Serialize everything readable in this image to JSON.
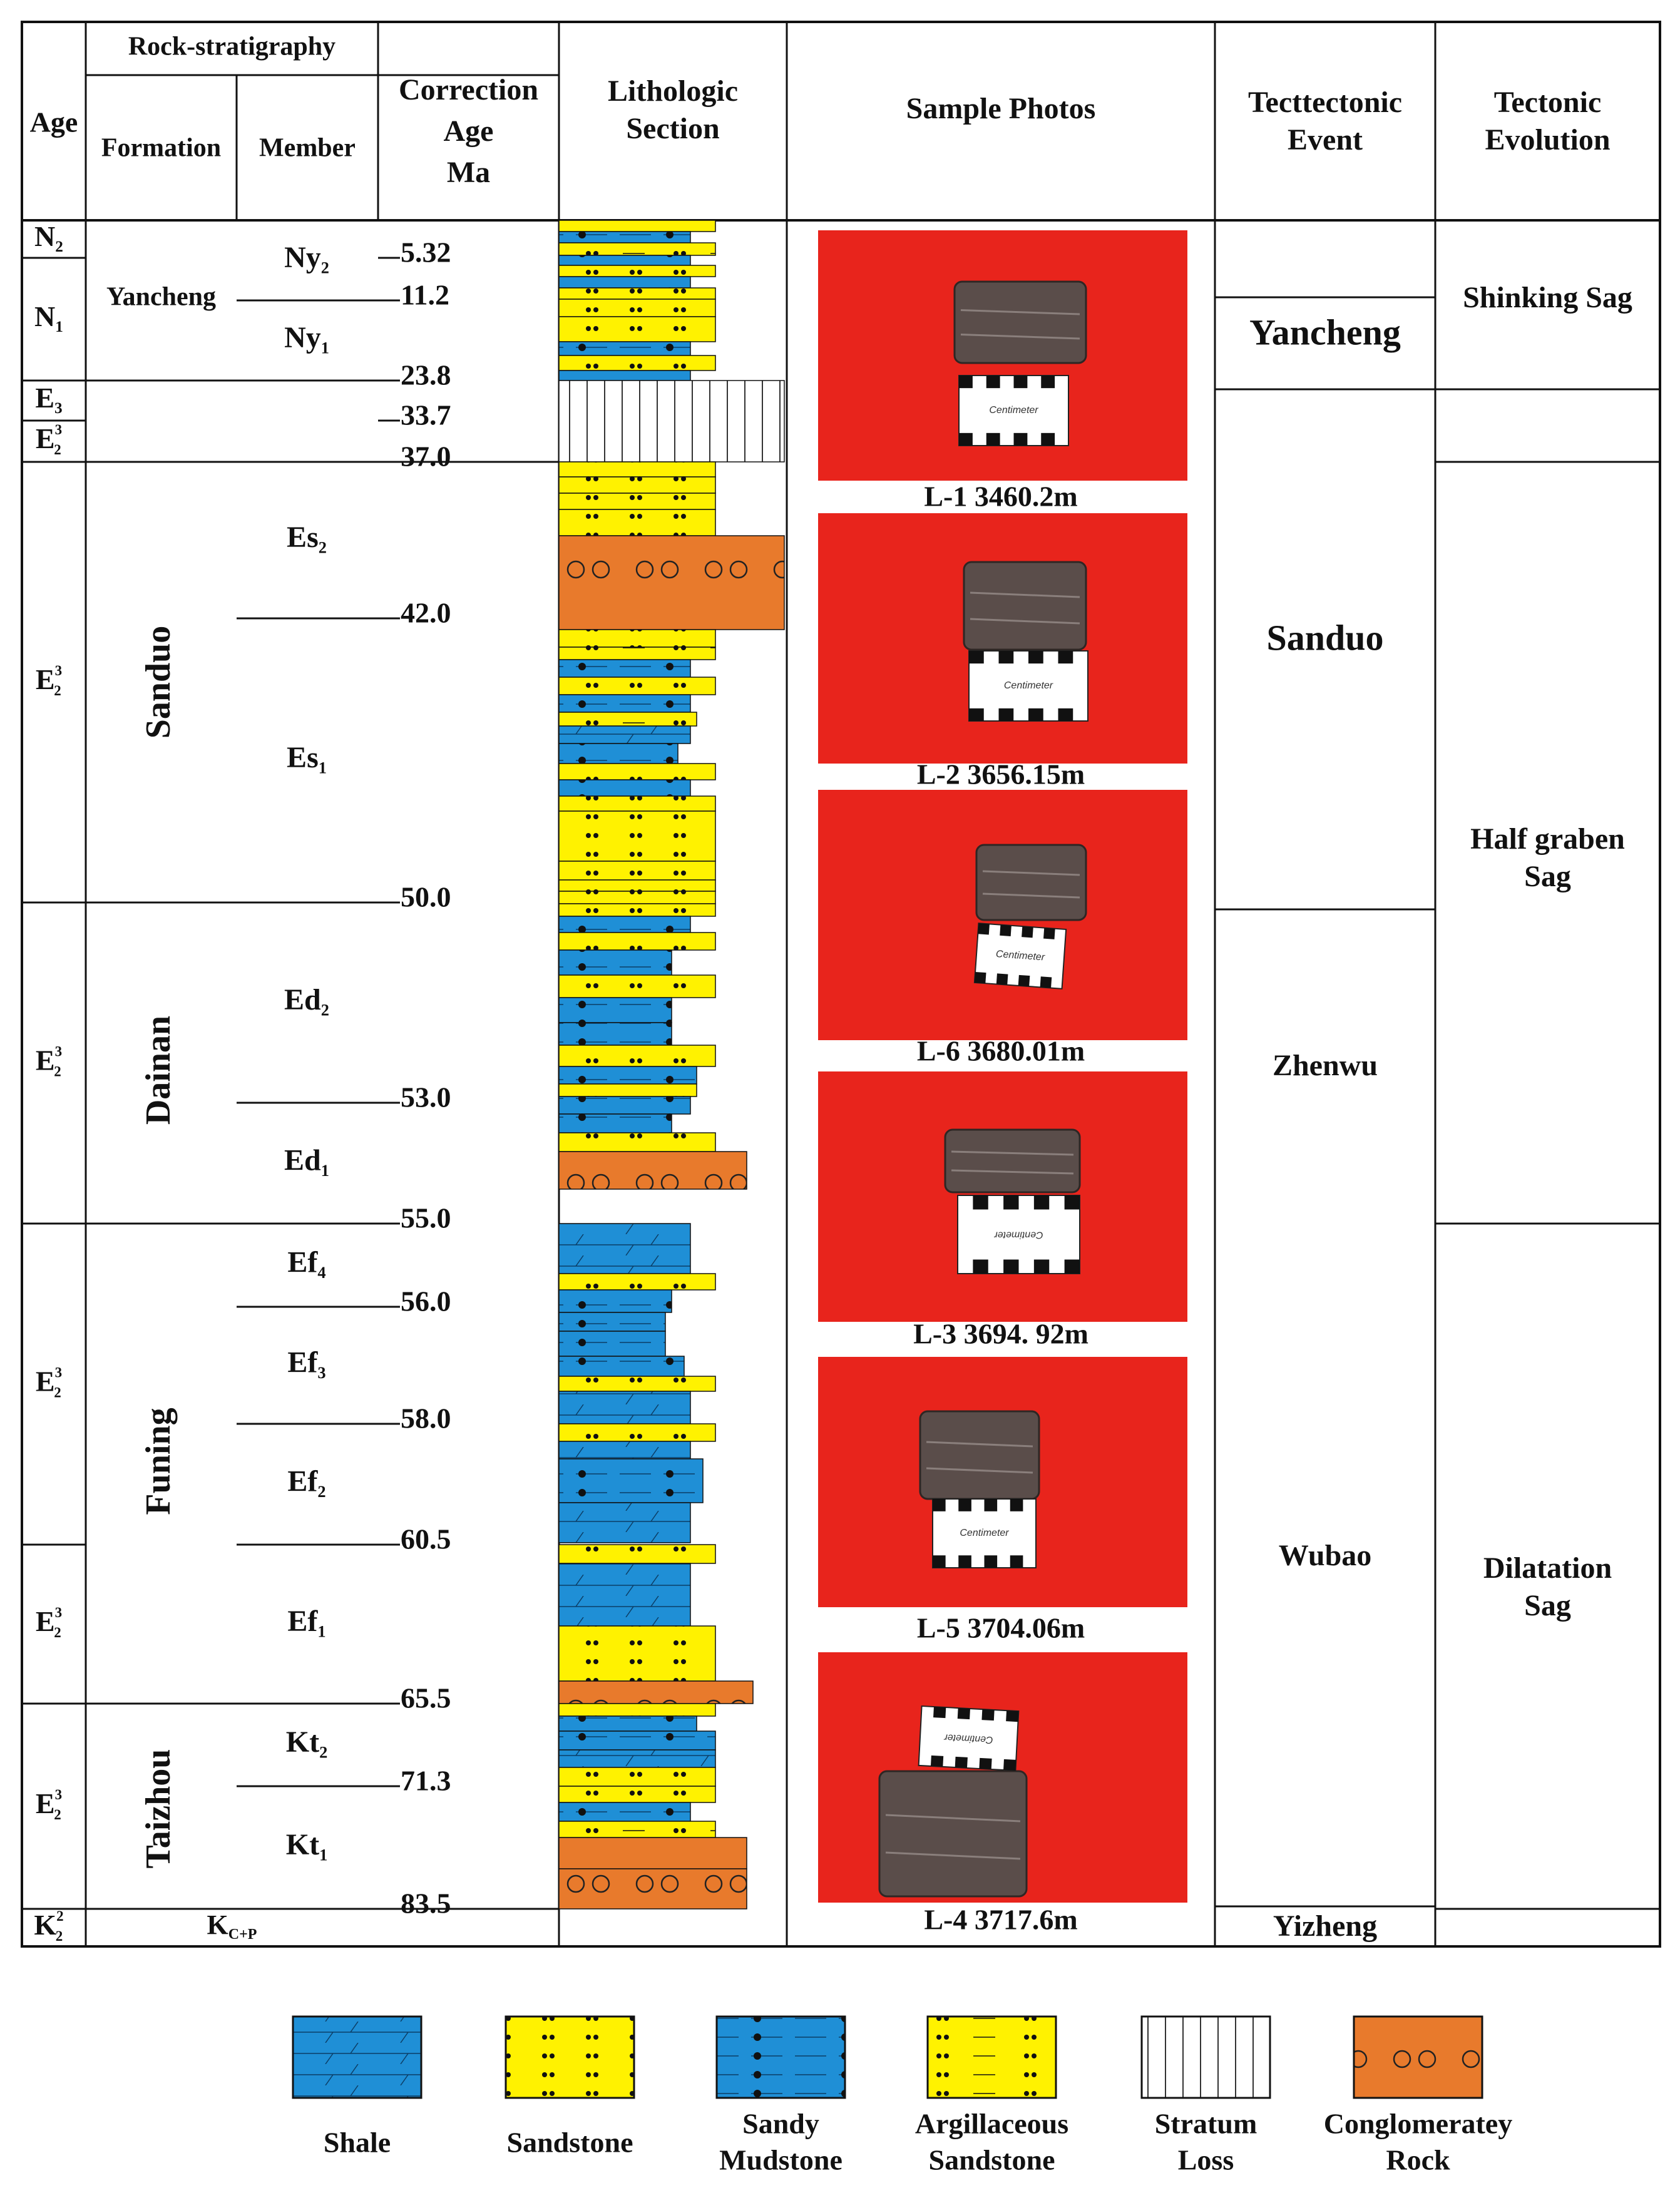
{
  "headers": {
    "age": "Age",
    "rock_strat": "Rock-stratigraphy",
    "formation": "Formation",
    "member": "Member",
    "correction_age": [
      "Correction",
      "Age",
      "Ma"
    ],
    "lithologic_section": [
      "Lithologic",
      "Section"
    ],
    "sample_photos": "Sample Photos",
    "tectonic_event": [
      "Tecttectonic",
      "Event"
    ],
    "tectonic_evolution": [
      "Tectonic",
      "Evolution"
    ]
  },
  "age_codes": [
    {
      "main": "N",
      "sub": "2"
    },
    {
      "main": "N",
      "sub": "1"
    },
    {
      "main": "E",
      "sub": "3"
    },
    {
      "main": "E",
      "sub": "2",
      "sup": "3"
    },
    {
      "main": "E",
      "sub": "2",
      "sup": "3"
    },
    {
      "main": "E",
      "sub": "2",
      "sup": "3"
    },
    {
      "main": "E",
      "sub": "2",
      "sup": "3"
    },
    {
      "main": "E",
      "sub": "2",
      "sup": "3"
    },
    {
      "main": "E",
      "sub": "2",
      "sup": "3"
    },
    {
      "main": "K",
      "sub": "2",
      "sup": "2"
    }
  ],
  "formations": [
    "Yancheng",
    "Sanduo",
    "Dainan",
    "Funing",
    "Taizhou",
    "K"
  ],
  "formation_sub": "C+P",
  "members": [
    {
      "main": "Ny",
      "sub": "2"
    },
    {
      "main": "Ny",
      "sub": "1"
    },
    {
      "main": "Es",
      "sub": "2"
    },
    {
      "main": "Es",
      "sub": "1"
    },
    {
      "main": "Ed",
      "sub": "2"
    },
    {
      "main": "Ed",
      "sub": "1"
    },
    {
      "main": "Ef",
      "sub": "4"
    },
    {
      "main": "Ef",
      "sub": "3"
    },
    {
      "main": "Ef",
      "sub": "2"
    },
    {
      "main": "Ef",
      "sub": "1"
    },
    {
      "main": "Kt",
      "sub": "2"
    },
    {
      "main": "Kt",
      "sub": "1"
    }
  ],
  "correction_ages": [
    "5.32",
    "11.2",
    "23.8",
    "33.7",
    "37.0",
    "42.0",
    "50.0",
    "53.0",
    "55.0",
    "56.0",
    "58.0",
    "60.5",
    "65.5",
    "71.3",
    "83.5"
  ],
  "samples": [
    {
      "caption": "L-1  3460.2m",
      "card": "Centimeter"
    },
    {
      "caption": "L-2  3656.15m",
      "card": "Centimeter"
    },
    {
      "caption": "L-6  3680.01m",
      "card": "Centimeter"
    },
    {
      "caption": "L-3  3694. 92m",
      "card": "Centimeter"
    },
    {
      "caption": "L-5  3704.06m",
      "card": "Centimeter"
    },
    {
      "caption": "L-4  3717.6m",
      "card": "Centimeter"
    }
  ],
  "tectonic_events": [
    "Yancheng",
    "Sanduo",
    "Zhenwu",
    "Wubao",
    "Yizheng"
  ],
  "tectonic_evolution": [
    [
      "Shinking Sag"
    ],
    [
      "Half graben",
      "Sag"
    ],
    [
      "Dilatation",
      "Sag"
    ]
  ],
  "legend": [
    {
      "key": "shale",
      "label": [
        "Shale"
      ]
    },
    {
      "key": "sandstone",
      "label": [
        "Sandstone"
      ]
    },
    {
      "key": "sandy_mudstone",
      "label": [
        "Sandy",
        "Mudstone"
      ]
    },
    {
      "key": "argillaceous_sandstone",
      "label": [
        "Argillaceous",
        "Sandstone"
      ]
    },
    {
      "key": "stratum_loss",
      "label": [
        "Stratum",
        "Loss"
      ]
    },
    {
      "key": "conglomerate",
      "label": [
        "Conglomeratey",
        "Rock"
      ]
    }
  ],
  "colors": {
    "shale": "#1f8fd6",
    "sandstone": "#fff200",
    "conglomerate": "#e87a2c",
    "photo_bg": "#e8241c",
    "line": "#111111"
  }
}
